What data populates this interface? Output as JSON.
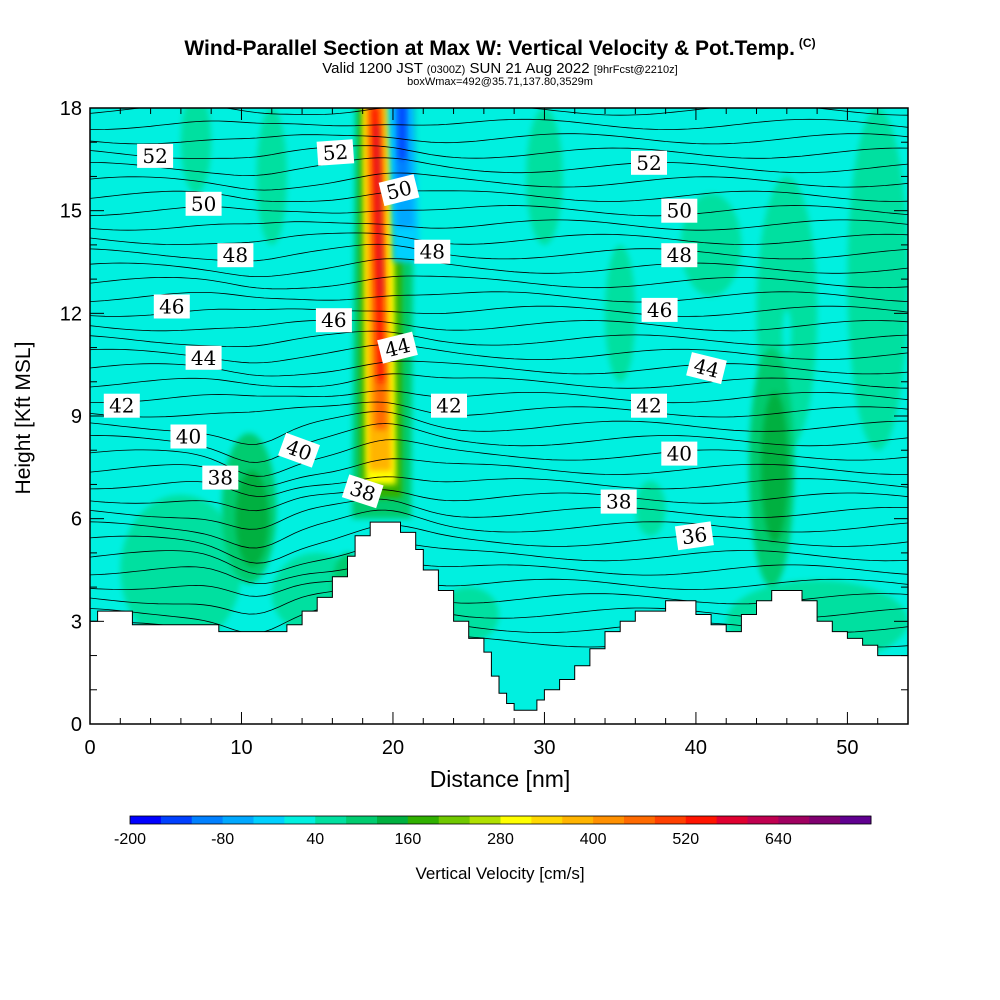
{
  "title": {
    "main": "Wind-Parallel Section at Max W: Vertical Velocity & Pot.Temp.",
    "copyright": "(C)",
    "valid_prefix": "Valid 1200 JST",
    "valid_utc": "(0300Z)",
    "valid_date": "SUN 21 Aug 2022",
    "forecast": "[9hrFcst@2210z]",
    "box_info": "boxWmax=492@35.71,137.80,3529m"
  },
  "chart_data": {
    "type": "heatmap",
    "xlabel": "Distance [nm]",
    "ylabel": "Height [Kft MSL]",
    "xlim": [
      0,
      54
    ],
    "ylim": [
      0,
      18
    ],
    "x_ticks": [
      0,
      10,
      20,
      30,
      40,
      50
    ],
    "y_ticks": [
      0,
      3,
      6,
      9,
      12,
      15,
      18
    ],
    "colorbar": {
      "label": "Vertical Velocity [cm/s]",
      "tick_labels": [
        -200,
        -80,
        40,
        160,
        280,
        400,
        520,
        640
      ],
      "levels": [
        -200,
        -160,
        -120,
        -80,
        -40,
        0,
        40,
        80,
        120,
        160,
        200,
        240,
        280,
        320,
        360,
        400,
        440,
        480,
        520,
        560,
        600,
        640,
        680,
        720
      ],
      "colors": [
        "#0000ff",
        "#0040ff",
        "#0080ff",
        "#00a8ff",
        "#00d0ff",
        "#00f0e0",
        "#00e0a0",
        "#00cc70",
        "#00b040",
        "#30b000",
        "#70c800",
        "#b0e000",
        "#ffff00",
        "#ffd800",
        "#ffb400",
        "#ff9000",
        "#ff6a00",
        "#ff4000",
        "#ff1400",
        "#e00030",
        "#c00050",
        "#a00060",
        "#800070",
        "#600090"
      ]
    },
    "terrain_kft": [
      [
        0,
        3.0
      ],
      [
        0.5,
        3.0
      ],
      [
        0.5,
        3.3
      ],
      [
        2.8,
        3.3
      ],
      [
        2.8,
        2.9
      ],
      [
        8.5,
        2.9
      ],
      [
        8.5,
        2.7
      ],
      [
        13,
        2.7
      ],
      [
        13,
        2.9
      ],
      [
        14,
        2.9
      ],
      [
        14,
        3.3
      ],
      [
        15,
        3.3
      ],
      [
        15,
        3.7
      ],
      [
        16,
        3.7
      ],
      [
        16,
        4.3
      ],
      [
        17,
        4.3
      ],
      [
        17,
        4.9
      ],
      [
        17.5,
        4.9
      ],
      [
        17.5,
        5.5
      ],
      [
        18.5,
        5.5
      ],
      [
        18.5,
        5.9
      ],
      [
        20.5,
        5.9
      ],
      [
        20.5,
        5.6
      ],
      [
        21.5,
        5.6
      ],
      [
        21.5,
        5.1
      ],
      [
        22,
        5.1
      ],
      [
        22,
        4.5
      ],
      [
        23,
        4.5
      ],
      [
        23,
        3.9
      ],
      [
        24,
        3.9
      ],
      [
        24,
        3.0
      ],
      [
        25,
        3.0
      ],
      [
        25,
        2.5
      ],
      [
        26,
        2.5
      ],
      [
        26,
        2.1
      ],
      [
        26.5,
        2.1
      ],
      [
        26.5,
        1.4
      ],
      [
        27,
        1.4
      ],
      [
        27,
        0.9
      ],
      [
        27.5,
        0.9
      ],
      [
        27.5,
        0.6
      ],
      [
        28,
        0.6
      ],
      [
        28,
        0.4
      ],
      [
        29.5,
        0.4
      ],
      [
        29.5,
        0.7
      ],
      [
        30,
        0.7
      ],
      [
        30,
        1.0
      ],
      [
        31,
        1.0
      ],
      [
        31,
        1.3
      ],
      [
        32,
        1.3
      ],
      [
        32,
        1.7
      ],
      [
        33,
        1.7
      ],
      [
        33,
        2.2
      ],
      [
        34,
        2.2
      ],
      [
        34,
        2.7
      ],
      [
        35,
        2.7
      ],
      [
        35,
        3.0
      ],
      [
        36,
        3.0
      ],
      [
        36,
        3.3
      ],
      [
        38,
        3.3
      ],
      [
        38,
        3.6
      ],
      [
        40,
        3.6
      ],
      [
        40,
        3.2
      ],
      [
        41,
        3.2
      ],
      [
        41,
        2.9
      ],
      [
        42,
        2.9
      ],
      [
        42,
        2.7
      ],
      [
        43,
        2.7
      ],
      [
        43,
        3.2
      ],
      [
        44,
        3.2
      ],
      [
        44,
        3.6
      ],
      [
        45,
        3.6
      ],
      [
        45,
        3.9
      ],
      [
        47,
        3.9
      ],
      [
        47,
        3.6
      ],
      [
        48,
        3.6
      ],
      [
        48,
        3.0
      ],
      [
        49,
        3.0
      ],
      [
        49,
        2.7
      ],
      [
        50,
        2.7
      ],
      [
        50,
        2.5
      ],
      [
        51,
        2.5
      ],
      [
        51,
        2.3
      ],
      [
        52,
        2.3
      ],
      [
        52,
        2.0
      ],
      [
        54,
        2.0
      ]
    ],
    "theta_contour_labels": [
      {
        "text": "52",
        "x": 4.3,
        "y": 16.6,
        "angle": 0
      },
      {
        "text": "52",
        "x": 16.2,
        "y": 16.7,
        "angle": -4
      },
      {
        "text": "50",
        "x": 20.4,
        "y": 15.6,
        "angle": -14
      },
      {
        "text": "52",
        "x": 36.9,
        "y": 16.4,
        "angle": 0
      },
      {
        "text": "50",
        "x": 7.5,
        "y": 15.2,
        "angle": 0
      },
      {
        "text": "50",
        "x": 38.9,
        "y": 15.0,
        "angle": 0
      },
      {
        "text": "48",
        "x": 9.6,
        "y": 13.7,
        "angle": 0
      },
      {
        "text": "48",
        "x": 22.6,
        "y": 13.8,
        "angle": 0
      },
      {
        "text": "48",
        "x": 38.9,
        "y": 13.7,
        "angle": 0
      },
      {
        "text": "46",
        "x": 5.4,
        "y": 12.2,
        "angle": 0
      },
      {
        "text": "46",
        "x": 16.1,
        "y": 11.8,
        "angle": 0
      },
      {
        "text": "46",
        "x": 37.6,
        "y": 12.1,
        "angle": 0
      },
      {
        "text": "44",
        "x": 7.5,
        "y": 10.7,
        "angle": 0
      },
      {
        "text": "44",
        "x": 20.3,
        "y": 11.0,
        "angle": -14
      },
      {
        "text": "44",
        "x": 40.7,
        "y": 10.4,
        "angle": 14
      },
      {
        "text": "42",
        "x": 2.1,
        "y": 9.3,
        "angle": 0
      },
      {
        "text": "42",
        "x": 23.7,
        "y": 9.3,
        "angle": 0
      },
      {
        "text": "42",
        "x": 36.9,
        "y": 9.3,
        "angle": 0
      },
      {
        "text": "40",
        "x": 6.5,
        "y": 8.4,
        "angle": 0
      },
      {
        "text": "40",
        "x": 13.8,
        "y": 8.0,
        "angle": 20
      },
      {
        "text": "40",
        "x": 38.9,
        "y": 7.9,
        "angle": 0
      },
      {
        "text": "38",
        "x": 8.6,
        "y": 7.2,
        "angle": 0
      },
      {
        "text": "38",
        "x": 18.0,
        "y": 6.8,
        "angle": 18
      },
      {
        "text": "38",
        "x": 34.9,
        "y": 6.5,
        "angle": 0
      },
      {
        "text": "36",
        "x": 39.9,
        "y": 5.5,
        "angle": -8
      }
    ],
    "theta_levels": [
      36,
      38,
      40,
      42,
      44,
      46,
      48,
      50,
      52
    ]
  }
}
